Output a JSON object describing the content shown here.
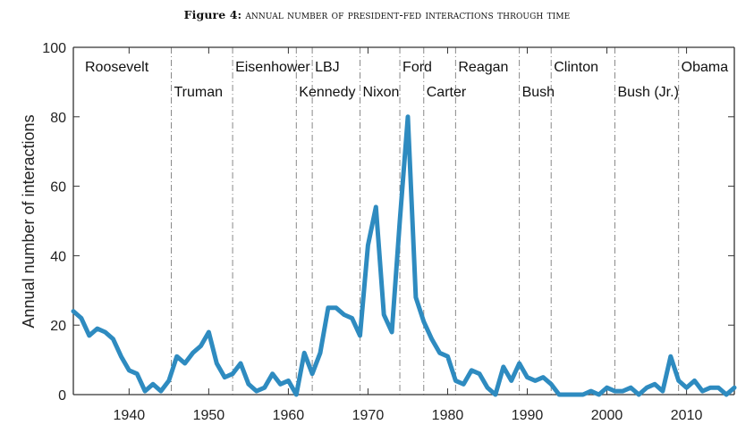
{
  "figure": {
    "label": "Figure 4:",
    "caption": "ANNUAL NUMBER OF PRESIDENT-FED INTERACTIONS THROUGH TIME"
  },
  "chart_data": {
    "type": "line",
    "title": "Figure 4: ANNUAL NUMBER OF PRESIDENT-FED INTERACTIONS THROUGH TIME",
    "xlabel": "",
    "ylabel": "Annual number of interactions",
    "xlim": [
      1933,
      2016
    ],
    "ylim": [
      0,
      100
    ],
    "xticks": [
      1940,
      1950,
      1960,
      1970,
      1980,
      1990,
      2000,
      2010
    ],
    "yticks": [
      0,
      20,
      40,
      60,
      80,
      100
    ],
    "grid": false,
    "line_color": "#2e8bc0",
    "series": [
      {
        "name": "Annual number of interactions",
        "x": [
          1933,
          1934,
          1935,
          1936,
          1937,
          1938,
          1939,
          1940,
          1941,
          1942,
          1943,
          1944,
          1945,
          1946,
          1947,
          1948,
          1949,
          1950,
          1951,
          1952,
          1953,
          1954,
          1955,
          1956,
          1957,
          1958,
          1959,
          1960,
          1961,
          1962,
          1963,
          1964,
          1965,
          1966,
          1967,
          1968,
          1969,
          1970,
          1971,
          1972,
          1973,
          1974,
          1975,
          1976,
          1977,
          1978,
          1979,
          1980,
          1981,
          1982,
          1983,
          1984,
          1985,
          1986,
          1987,
          1988,
          1989,
          1990,
          1991,
          1992,
          1993,
          1994,
          1995,
          1996,
          1997,
          1998,
          1999,
          2000,
          2001,
          2002,
          2003,
          2004,
          2005,
          2006,
          2007,
          2008,
          2009,
          2010,
          2011,
          2012,
          2013,
          2014,
          2015,
          2016
        ],
        "values": [
          24,
          22,
          17,
          19,
          18,
          16,
          11,
          7,
          6,
          1,
          3,
          1,
          4,
          11,
          9,
          12,
          14,
          18,
          9,
          5,
          6,
          9,
          3,
          1,
          2,
          6,
          3,
          4,
          0,
          12,
          6,
          12,
          25,
          25,
          23,
          22,
          17,
          43,
          54,
          23,
          18,
          50,
          80,
          28,
          21,
          16,
          12,
          11,
          4,
          3,
          7,
          6,
          2,
          0,
          8,
          4,
          9,
          5,
          4,
          5,
          3,
          0,
          0,
          0,
          0,
          1,
          0,
          2,
          1,
          1,
          2,
          0,
          2,
          3,
          1,
          11,
          4,
          2,
          4,
          1,
          2,
          2,
          0,
          2
        ]
      }
    ],
    "presidents": [
      {
        "name": "Roosevelt",
        "start": 1933,
        "row": 1
      },
      {
        "name": "Truman",
        "start": 1945.3,
        "row": 2
      },
      {
        "name": "Eisenhower",
        "start": 1953,
        "row": 1
      },
      {
        "name": "Kennedy",
        "start": 1961,
        "row": 2
      },
      {
        "name": "LBJ",
        "start": 1963,
        "row": 1
      },
      {
        "name": "Nixon",
        "start": 1969,
        "row": 2
      },
      {
        "name": "Ford",
        "start": 1974,
        "row": 1
      },
      {
        "name": "Carter",
        "start": 1977,
        "row": 2
      },
      {
        "name": "Reagan",
        "start": 1981,
        "row": 1
      },
      {
        "name": "Bush",
        "start": 1989,
        "row": 2
      },
      {
        "name": "Clinton",
        "start": 1993,
        "row": 1
      },
      {
        "name": "Bush (Jr.)",
        "start": 2001,
        "row": 2
      },
      {
        "name": "Obama",
        "start": 2009,
        "row": 1
      }
    ]
  }
}
